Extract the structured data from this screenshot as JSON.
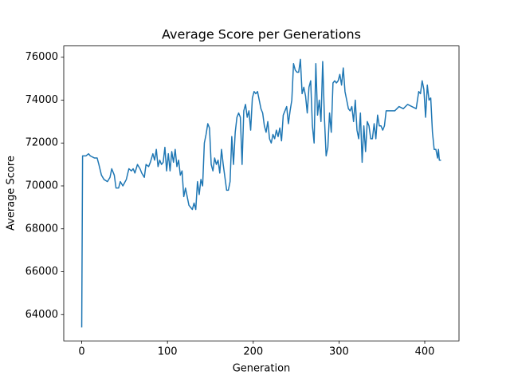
{
  "chart_data": {
    "type": "line",
    "title": "Average Score per Generations",
    "x_label": "Generation",
    "y_label": "Average Score",
    "color": "#1f77b4",
    "xlim": [
      -20.95,
      439.95
    ],
    "ylim": [
      62775,
      76525
    ],
    "xticks": [
      0,
      100,
      200,
      300,
      400
    ],
    "yticks": [
      64000,
      66000,
      68000,
      70000,
      72000,
      74000,
      76000
    ],
    "grid": false,
    "x": [
      0,
      1,
      5,
      8,
      10,
      15,
      18,
      20,
      23,
      26,
      30,
      33,
      35,
      38,
      40,
      43,
      45,
      48,
      52,
      55,
      58,
      60,
      62,
      65,
      68,
      70,
      73,
      75,
      78,
      80,
      83,
      85,
      87,
      89,
      91,
      93,
      95,
      97,
      99,
      101,
      103,
      105,
      107,
      109,
      111,
      113,
      115,
      117,
      119,
      121,
      123,
      125,
      127,
      129,
      131,
      133,
      135,
      137,
      139,
      141,
      143,
      145,
      147,
      149,
      151,
      153,
      155,
      157,
      159,
      161,
      163,
      165,
      167,
      169,
      171,
      173,
      175,
      177,
      179,
      181,
      183,
      185,
      187,
      189,
      191,
      193,
      195,
      197,
      199,
      201,
      203,
      205,
      207,
      209,
      211,
      213,
      215,
      217,
      219,
      221,
      223,
      225,
      227,
      229,
      231,
      233,
      235,
      237,
      239,
      241,
      243,
      245,
      247,
      249,
      251,
      253,
      255,
      257,
      259,
      261,
      263,
      265,
      267,
      269,
      271,
      273,
      275,
      277,
      279,
      281,
      283,
      285,
      287,
      289,
      291,
      293,
      295,
      297,
      299,
      301,
      303,
      305,
      307,
      309,
      311,
      313,
      315,
      317,
      319,
      321,
      323,
      325,
      327,
      329,
      331,
      333,
      335,
      337,
      339,
      341,
      343,
      345,
      347,
      349,
      351,
      353,
      355,
      360,
      365,
      370,
      375,
      380,
      385,
      390,
      393,
      395,
      397,
      399,
      401,
      403,
      405,
      407,
      409,
      411,
      413,
      415,
      416,
      417,
      419
    ],
    "values": [
      63400,
      71400,
      71400,
      71500,
      71400,
      71300,
      71300,
      71000,
      70500,
      70300,
      70200,
      70400,
      70800,
      70500,
      69900,
      69900,
      70200,
      70000,
      70300,
      70800,
      70700,
      70800,
      70600,
      71000,
      70800,
      70600,
      70400,
      71000,
      70900,
      71100,
      71500,
      71200,
      71700,
      70900,
      71200,
      71000,
      71100,
      71800,
      70700,
      71500,
      70700,
      71600,
      71100,
      71700,
      70900,
      71200,
      70500,
      70700,
      69500,
      69900,
      69500,
      69100,
      69000,
      68900,
      69200,
      68900,
      70200,
      69600,
      70300,
      70000,
      72000,
      72400,
      72900,
      72700,
      71000,
      70700,
      71300,
      71000,
      71200,
      70600,
      71700,
      71000,
      70400,
      69800,
      69800,
      70200,
      72300,
      71000,
      72500,
      73200,
      73400,
      73200,
      71000,
      73500,
      73800,
      73200,
      73500,
      72600,
      74100,
      74400,
      74300,
      74400,
      74000,
      73600,
      73400,
      72800,
      72500,
      73000,
      72200,
      72000,
      72400,
      72200,
      72600,
      72300,
      72700,
      72100,
      73300,
      73500,
      73700,
      72900,
      73500,
      74000,
      75700,
      75400,
      75300,
      75300,
      75900,
      74300,
      74600,
      74200,
      73400,
      74600,
      74900,
      72800,
      72000,
      75700,
      73300,
      74000,
      73000,
      75800,
      73200,
      71400,
      71800,
      73400,
      72500,
      74800,
      74900,
      74800,
      74900,
      75200,
      74700,
      75500,
      74400,
      74000,
      73600,
      73500,
      73700,
      73000,
      74000,
      72600,
      72200,
      73400,
      71100,
      72800,
      71600,
      73000,
      72800,
      72200,
      72200,
      72900,
      72200,
      73300,
      72800,
      72800,
      72600,
      72800,
      73500,
      73500,
      73500,
      73700,
      73600,
      73800,
      73700,
      73600,
      74400,
      74300,
      74900,
      74500,
      73200,
      74700,
      74000,
      74100,
      72500,
      71700,
      71700,
      71300,
      71700,
      71200,
      71200
    ]
  }
}
